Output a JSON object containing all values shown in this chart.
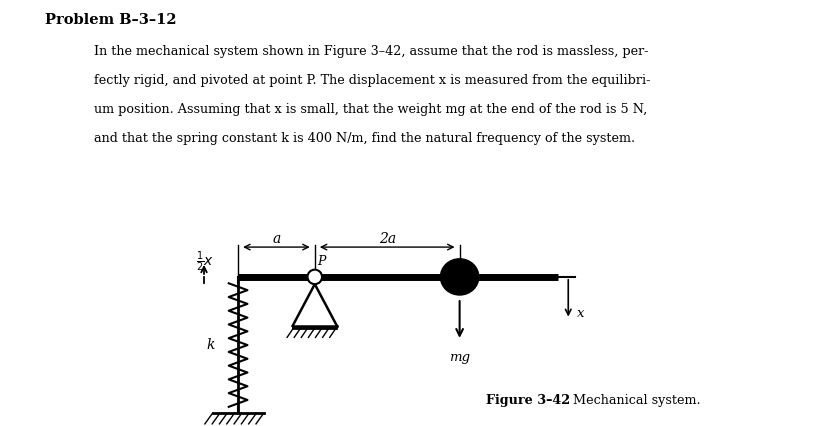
{
  "title": "Problem B–3–12",
  "para_lines": [
    "In the mechanical system shown in Figure 3–42, assume that the rod is massless, per-",
    "fectly rigid, and pivoted at point P. The displacement x is measured from the equilibri-",
    "um position. Assuming that x is small, that the weight mg at the end of the rod is 5 N,",
    "and that the spring constant k is 400 N/m, find the natural frequency of the system."
  ],
  "figure_caption_bold": "Figure 3–42",
  "figure_caption_normal": "   Mechanical system.",
  "bg_color": "#ffffff",
  "text_color": "#000000"
}
